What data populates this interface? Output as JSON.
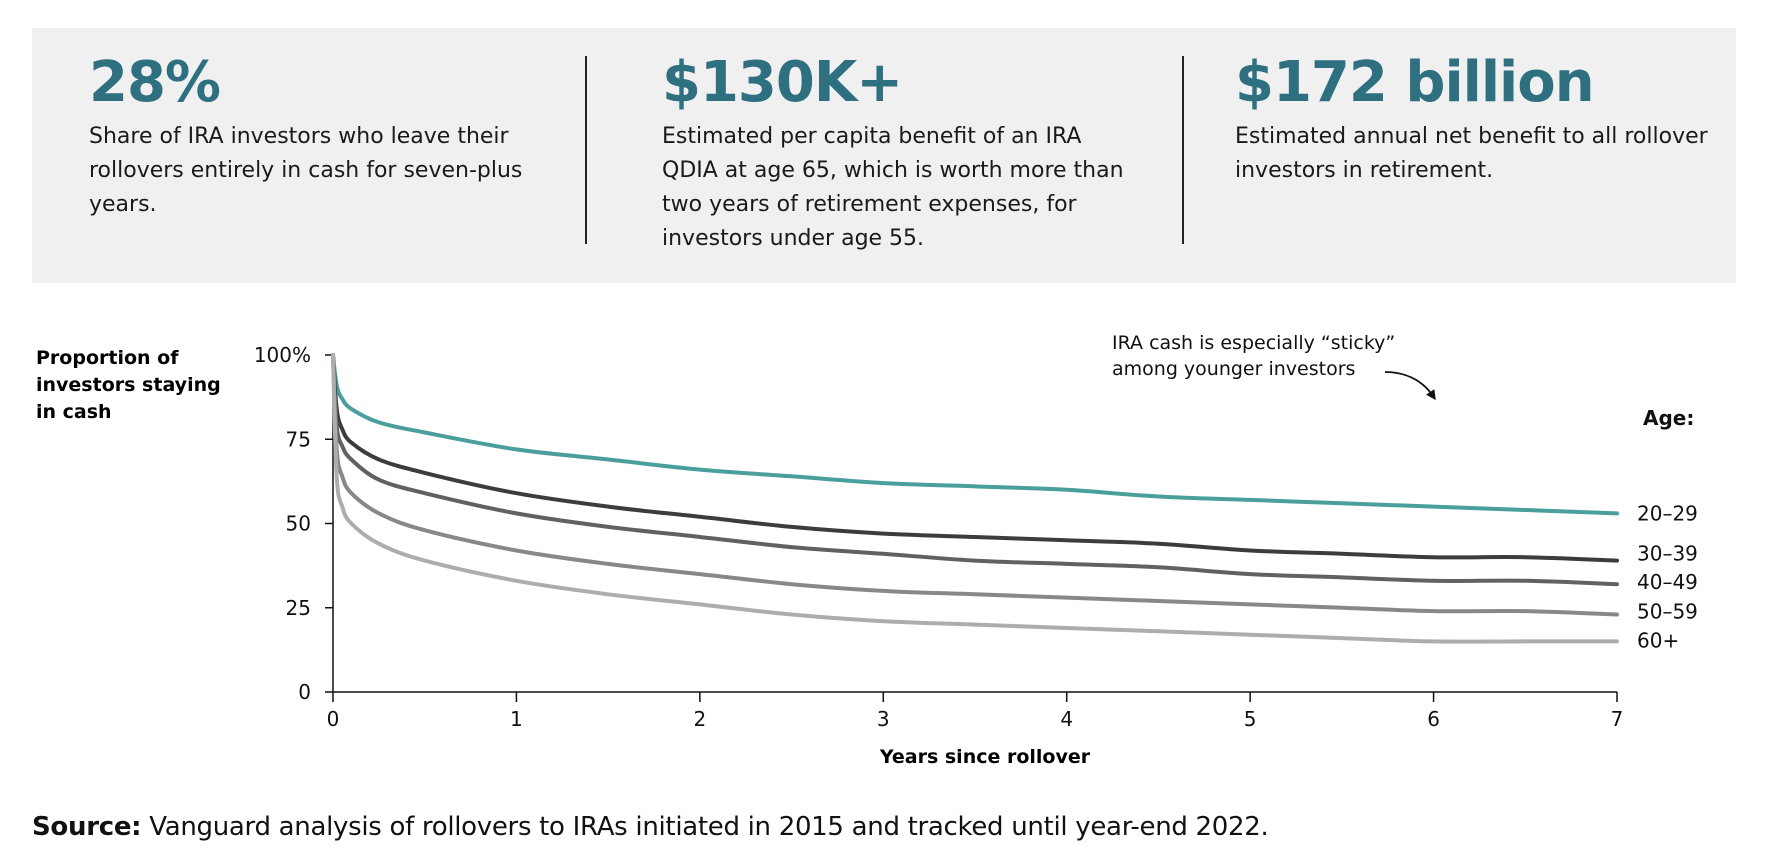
{
  "stats": [
    {
      "value": "28%",
      "description": "Share of IRA investors who leave their rollovers entirely in cash for seven-plus years."
    },
    {
      "value": "$130K+",
      "description": "Estimated per capita benefit of an IRA QDIA at age 65, which is worth more than two years of retirement expenses, for investors under age 55."
    },
    {
      "value": "$172 billion",
      "description": "Estimated annual net benefit to all rollover investors in retirement."
    }
  ],
  "chart_data": {
    "type": "line",
    "ylabel": "Proportion of investors staying in cash",
    "xlabel": "Years since rollover",
    "xlim": [
      0,
      7
    ],
    "ylim": [
      0,
      100
    ],
    "x_ticks": [
      "0",
      "1",
      "2",
      "3",
      "4",
      "5",
      "6",
      "7"
    ],
    "y_ticks": [
      "0",
      "25",
      "50",
      "75",
      "100%"
    ],
    "grid": false,
    "legend_title": "Age:",
    "legend_placement": "right, at line ends",
    "annotation": "IRA cash is especially “sticky” among younger investors",
    "x": [
      0,
      0.02,
      0.05,
      0.1,
      0.25,
      0.5,
      1,
      1.5,
      2,
      2.5,
      3,
      3.5,
      4,
      4.5,
      5,
      5.5,
      6,
      6.5,
      7
    ],
    "series": [
      {
        "name": "20–29",
        "color": "#4a9e9b",
        "values": [
          100,
          91,
          87,
          84,
          80,
          77,
          72,
          69,
          66,
          64,
          62,
          61,
          60,
          58,
          57,
          56,
          55,
          54,
          53
        ]
      },
      {
        "name": "30–39",
        "color": "#3c3c3e",
        "values": [
          100,
          84,
          78,
          74,
          69,
          65,
          59,
          55,
          52,
          49,
          47,
          46,
          45,
          44,
          42,
          41,
          40,
          40,
          39
        ]
      },
      {
        "name": "40–49",
        "color": "#616163",
        "values": [
          100,
          79,
          73,
          69,
          63,
          59,
          53,
          49,
          46,
          43,
          41,
          39,
          38,
          37,
          35,
          34,
          33,
          33,
          32
        ]
      },
      {
        "name": "50–59",
        "color": "#88888a",
        "values": [
          100,
          72,
          64,
          59,
          53,
          48,
          42,
          38,
          35,
          32,
          30,
          29,
          28,
          27,
          26,
          25,
          24,
          24,
          23
        ]
      },
      {
        "name": "60+",
        "color": "#adadaf",
        "values": [
          100,
          64,
          55,
          50,
          44,
          39,
          33,
          29,
          26,
          23,
          21,
          20,
          19,
          18,
          17,
          16,
          15,
          15,
          15
        ]
      }
    ]
  },
  "source": {
    "label": "Source:",
    "text": "Vanguard analysis of rollovers to IRAs initiated in 2015 and tracked until year-end 2022."
  }
}
